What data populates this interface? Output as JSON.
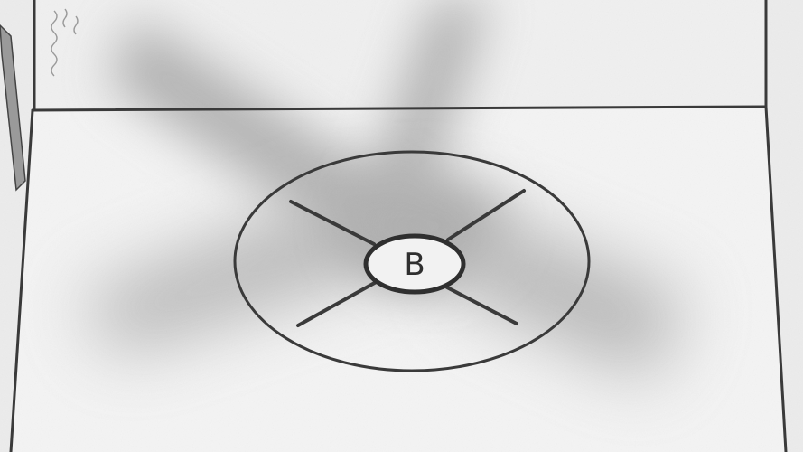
{
  "scene": {
    "marker_label": "B",
    "colors": {
      "background": "#e9e9e9",
      "ink": "#3a3a3a",
      "shadow": "#6f6f6f",
      "floor_light": "#f3f3f3"
    },
    "icons": {
      "helipad": "helipad-marking-icon",
      "smoke": "smoke-squiggle-icon"
    }
  }
}
